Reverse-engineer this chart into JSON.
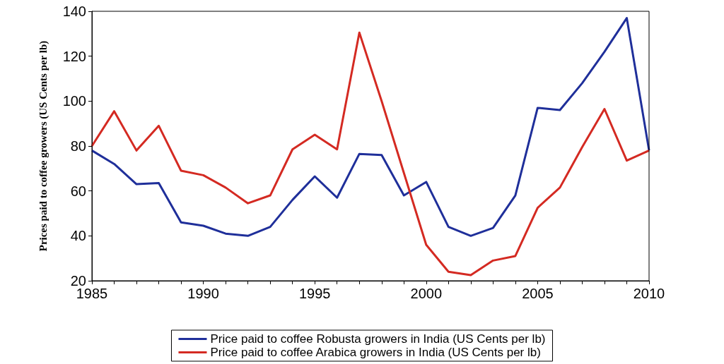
{
  "chart_data": {
    "type": "line",
    "ylabel": "Prices paid to coffee growers (US Cents per lb)",
    "x": [
      1985,
      1986,
      1987,
      1988,
      1989,
      1990,
      1991,
      1992,
      1993,
      1994,
      1995,
      1996,
      1997,
      1998,
      1999,
      2000,
      2001,
      2002,
      2003,
      2004,
      2005,
      2006,
      2007,
      2008,
      2009,
      2010
    ],
    "series": [
      {
        "name": "Price paid to coffee Robusta growers in India (US Cents per lb)",
        "color": "#1f2f9a",
        "values": [
          78,
          72,
          63,
          63.5,
          46,
          44.5,
          41,
          40,
          44,
          56,
          66.5,
          57,
          76.5,
          76,
          58,
          64,
          44,
          40,
          43.5,
          58,
          97,
          96,
          108,
          122,
          137,
          78
        ]
      },
      {
        "name": "Price paid to coffee Arabica growers in India (US Cents per lb)",
        "color": "#d42a22",
        "values": [
          80,
          95.5,
          78,
          89,
          69,
          67,
          61.5,
          54.5,
          58,
          78.5,
          85,
          78.5,
          130.5,
          100,
          68,
          36,
          24,
          22.5,
          29,
          31,
          52.5,
          61.5,
          79.5,
          96.5,
          73.5,
          78
        ]
      }
    ],
    "xlim": [
      1985,
      2010
    ],
    "xticks": [
      1985,
      {
        "value": 1986,
        "label": null
      },
      {
        "value": 1987,
        "label": null
      },
      {
        "value": 1988,
        "label": null
      },
      {
        "value": 1989,
        "label": null
      },
      1990,
      {
        "value": 1991,
        "label": null
      },
      {
        "value": 1992,
        "label": null
      },
      {
        "value": 1993,
        "label": null
      },
      {
        "value": 1994,
        "label": null
      },
      1995,
      {
        "value": 1996,
        "label": null
      },
      {
        "value": 1997,
        "label": null
      },
      {
        "value": 1998,
        "label": null
      },
      {
        "value": 1999,
        "label": null
      },
      2000,
      {
        "value": 2001,
        "label": null
      },
      {
        "value": 2002,
        "label": null
      },
      {
        "value": 2003,
        "label": null
      },
      {
        "value": 2004,
        "label": null
      },
      2005,
      {
        "value": 2006,
        "label": null
      },
      {
        "value": 2007,
        "label": null
      },
      {
        "value": 2008,
        "label": null
      },
      {
        "value": 2009,
        "label": null
      },
      2010
    ],
    "ylim": [
      20,
      140
    ],
    "yticks": [
      20,
      40,
      60,
      80,
      100,
      120,
      140
    ],
    "grid": false,
    "legend": "bottom",
    "marker": "none",
    "line_style": "solid"
  }
}
